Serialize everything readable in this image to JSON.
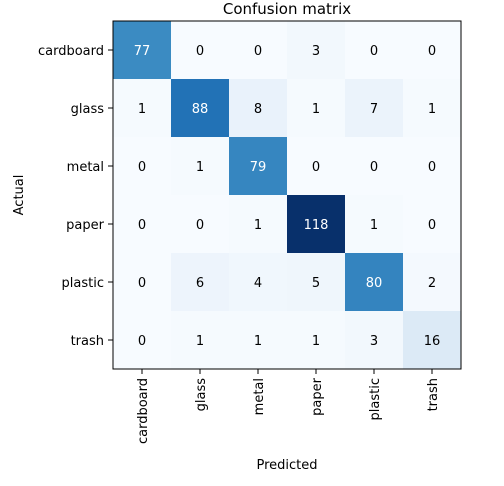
{
  "chart_data": {
    "type": "heatmap",
    "title": "Confusion matrix",
    "xlabel": "Predicted",
    "ylabel": "Actual",
    "row_labels": [
      "cardboard",
      "glass",
      "metal",
      "paper",
      "plastic",
      "trash"
    ],
    "col_labels": [
      "cardboard",
      "glass",
      "metal",
      "paper",
      "plastic",
      "trash"
    ],
    "matrix": [
      [
        77,
        0,
        0,
        3,
        0,
        0
      ],
      [
        1,
        88,
        8,
        1,
        7,
        1
      ],
      [
        0,
        1,
        79,
        0,
        0,
        0
      ],
      [
        0,
        0,
        1,
        118,
        1,
        0
      ],
      [
        0,
        6,
        4,
        5,
        80,
        2
      ],
      [
        0,
        1,
        1,
        1,
        3,
        16
      ]
    ],
    "colormap": "Blues",
    "value_range": [
      0,
      118
    ],
    "colors": {
      "low": "#f7fbff",
      "high": "#08306b",
      "text_dark": "#000000",
      "text_light": "#ffffff"
    }
  }
}
